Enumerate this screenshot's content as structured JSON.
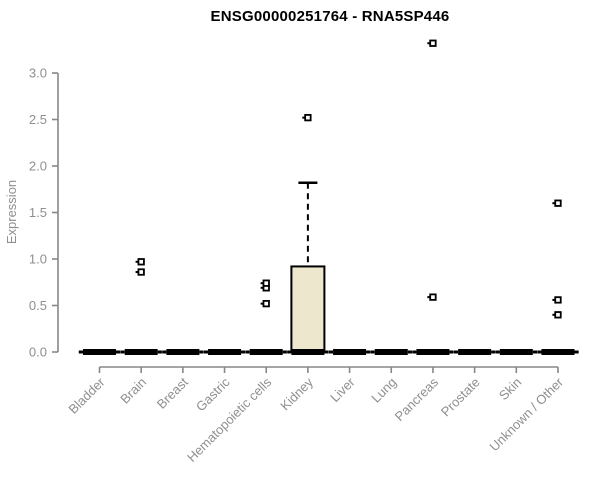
{
  "chart_data": {
    "type": "boxplot",
    "title": "ENSG00000251764 - RNA5SP446",
    "xlabel": "",
    "ylabel": "Expression",
    "ylim": [
      0.0,
      3.4
    ],
    "yticks": [
      0.0,
      0.5,
      1.0,
      1.5,
      2.0,
      2.5,
      3.0
    ],
    "grid": "off",
    "categories": [
      "Bladder",
      "Brain",
      "Breast",
      "Gastric",
      "Hematopoietic cells",
      "Kidney",
      "Liver",
      "Lung",
      "Pancreas",
      "Prostate",
      "Skin",
      "Unknown / Other"
    ],
    "boxes": [
      {
        "category": "Bladder",
        "whisker_low": 0,
        "q1": 0,
        "median": 0,
        "q3": 0,
        "whisker_high": 0,
        "outliers": []
      },
      {
        "category": "Brain",
        "whisker_low": 0,
        "q1": 0,
        "median": 0,
        "q3": 0,
        "whisker_high": 0,
        "outliers": [
          0.86,
          0.97
        ]
      },
      {
        "category": "Breast",
        "whisker_low": 0,
        "q1": 0,
        "median": 0,
        "q3": 0,
        "whisker_high": 0,
        "outliers": []
      },
      {
        "category": "Gastric",
        "whisker_low": 0,
        "q1": 0,
        "median": 0,
        "q3": 0,
        "whisker_high": 0,
        "outliers": []
      },
      {
        "category": "Hematopoietic cells",
        "whisker_low": 0,
        "q1": 0,
        "median": 0,
        "q3": 0,
        "whisker_high": 0,
        "outliers": [
          0.52,
          0.69,
          0.74
        ]
      },
      {
        "category": "Kidney",
        "whisker_low": 0,
        "q1": 0,
        "median": 0,
        "q3": 0.92,
        "whisker_high": 1.82,
        "outliers": [
          2.52
        ]
      },
      {
        "category": "Liver",
        "whisker_low": 0,
        "q1": 0,
        "median": 0,
        "q3": 0,
        "whisker_high": 0,
        "outliers": []
      },
      {
        "category": "Lung",
        "whisker_low": 0,
        "q1": 0,
        "median": 0,
        "q3": 0,
        "whisker_high": 0,
        "outliers": []
      },
      {
        "category": "Pancreas",
        "whisker_low": 0,
        "q1": 0,
        "median": 0,
        "q3": 0,
        "whisker_high": 0,
        "outliers": [
          0.59,
          3.32
        ]
      },
      {
        "category": "Prostate",
        "whisker_low": 0,
        "q1": 0,
        "median": 0,
        "q3": 0,
        "whisker_high": 0,
        "outliers": []
      },
      {
        "category": "Skin",
        "whisker_low": 0,
        "q1": 0,
        "median": 0,
        "q3": 0,
        "whisker_high": 0,
        "outliers": []
      },
      {
        "category": "Unknown / Other",
        "whisker_low": 0,
        "q1": 0,
        "median": 0,
        "q3": 0,
        "whisker_high": 0,
        "outliers": [
          0.4,
          0.56,
          1.6
        ]
      }
    ],
    "colors": {
      "box_fill": "#ECE7CD",
      "box_border": "#000000",
      "median": "#000000",
      "outlier": "#000000",
      "axis": "#878787",
      "tick_label": "#8f8f8f",
      "title": "#000000",
      "background": "#ffffff"
    }
  }
}
